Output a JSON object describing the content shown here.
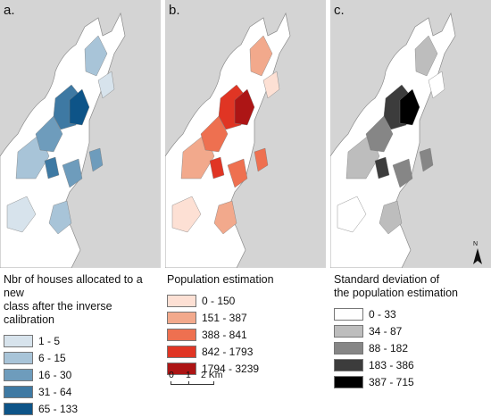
{
  "panels": [
    {
      "label": "a.",
      "legend_title": "Nbr of houses allocated to a new\nclass after the inverse calibration",
      "classes": [
        {
          "label": "1 - 5",
          "color": "#d7e3ec"
        },
        {
          "label": "6 - 15",
          "color": "#a8c4d8"
        },
        {
          "label": "16 - 30",
          "color": "#6e9cbc"
        },
        {
          "label": "31 - 64",
          "color": "#3e79a3"
        },
        {
          "label": "65 - 133",
          "color": "#0d5488"
        }
      ]
    },
    {
      "label": "b.",
      "legend_title": "Population estimation",
      "classes": [
        {
          "label": "0 - 150",
          "color": "#fde0d4"
        },
        {
          "label": "151 - 387",
          "color": "#f2a98c"
        },
        {
          "label": "388 - 841",
          "color": "#ee7050"
        },
        {
          "label": "842 - 1793",
          "color": "#e03524"
        },
        {
          "label": "1794 - 3239",
          "color": "#ad1515"
        }
      ]
    },
    {
      "label": "c.",
      "legend_title": "Standard deviation of\nthe population estimation",
      "classes": [
        {
          "label": "0 - 33",
          "color": "#ffffff"
        },
        {
          "label": "34 - 87",
          "color": "#bdbdbd"
        },
        {
          "label": "88 - 182",
          "color": "#868686"
        },
        {
          "label": "183 - 386",
          "color": "#3c3c3c"
        },
        {
          "label": "387 - 715",
          "color": "#000000"
        }
      ]
    }
  ],
  "scale_bar": {
    "labels": [
      "0",
      "1",
      "2 Km"
    ]
  },
  "north_arrow": {
    "letter": "N"
  },
  "colors": {
    "water": "#d4d4d4",
    "land": "#ffffff",
    "boundary": "#8a8a8a"
  }
}
